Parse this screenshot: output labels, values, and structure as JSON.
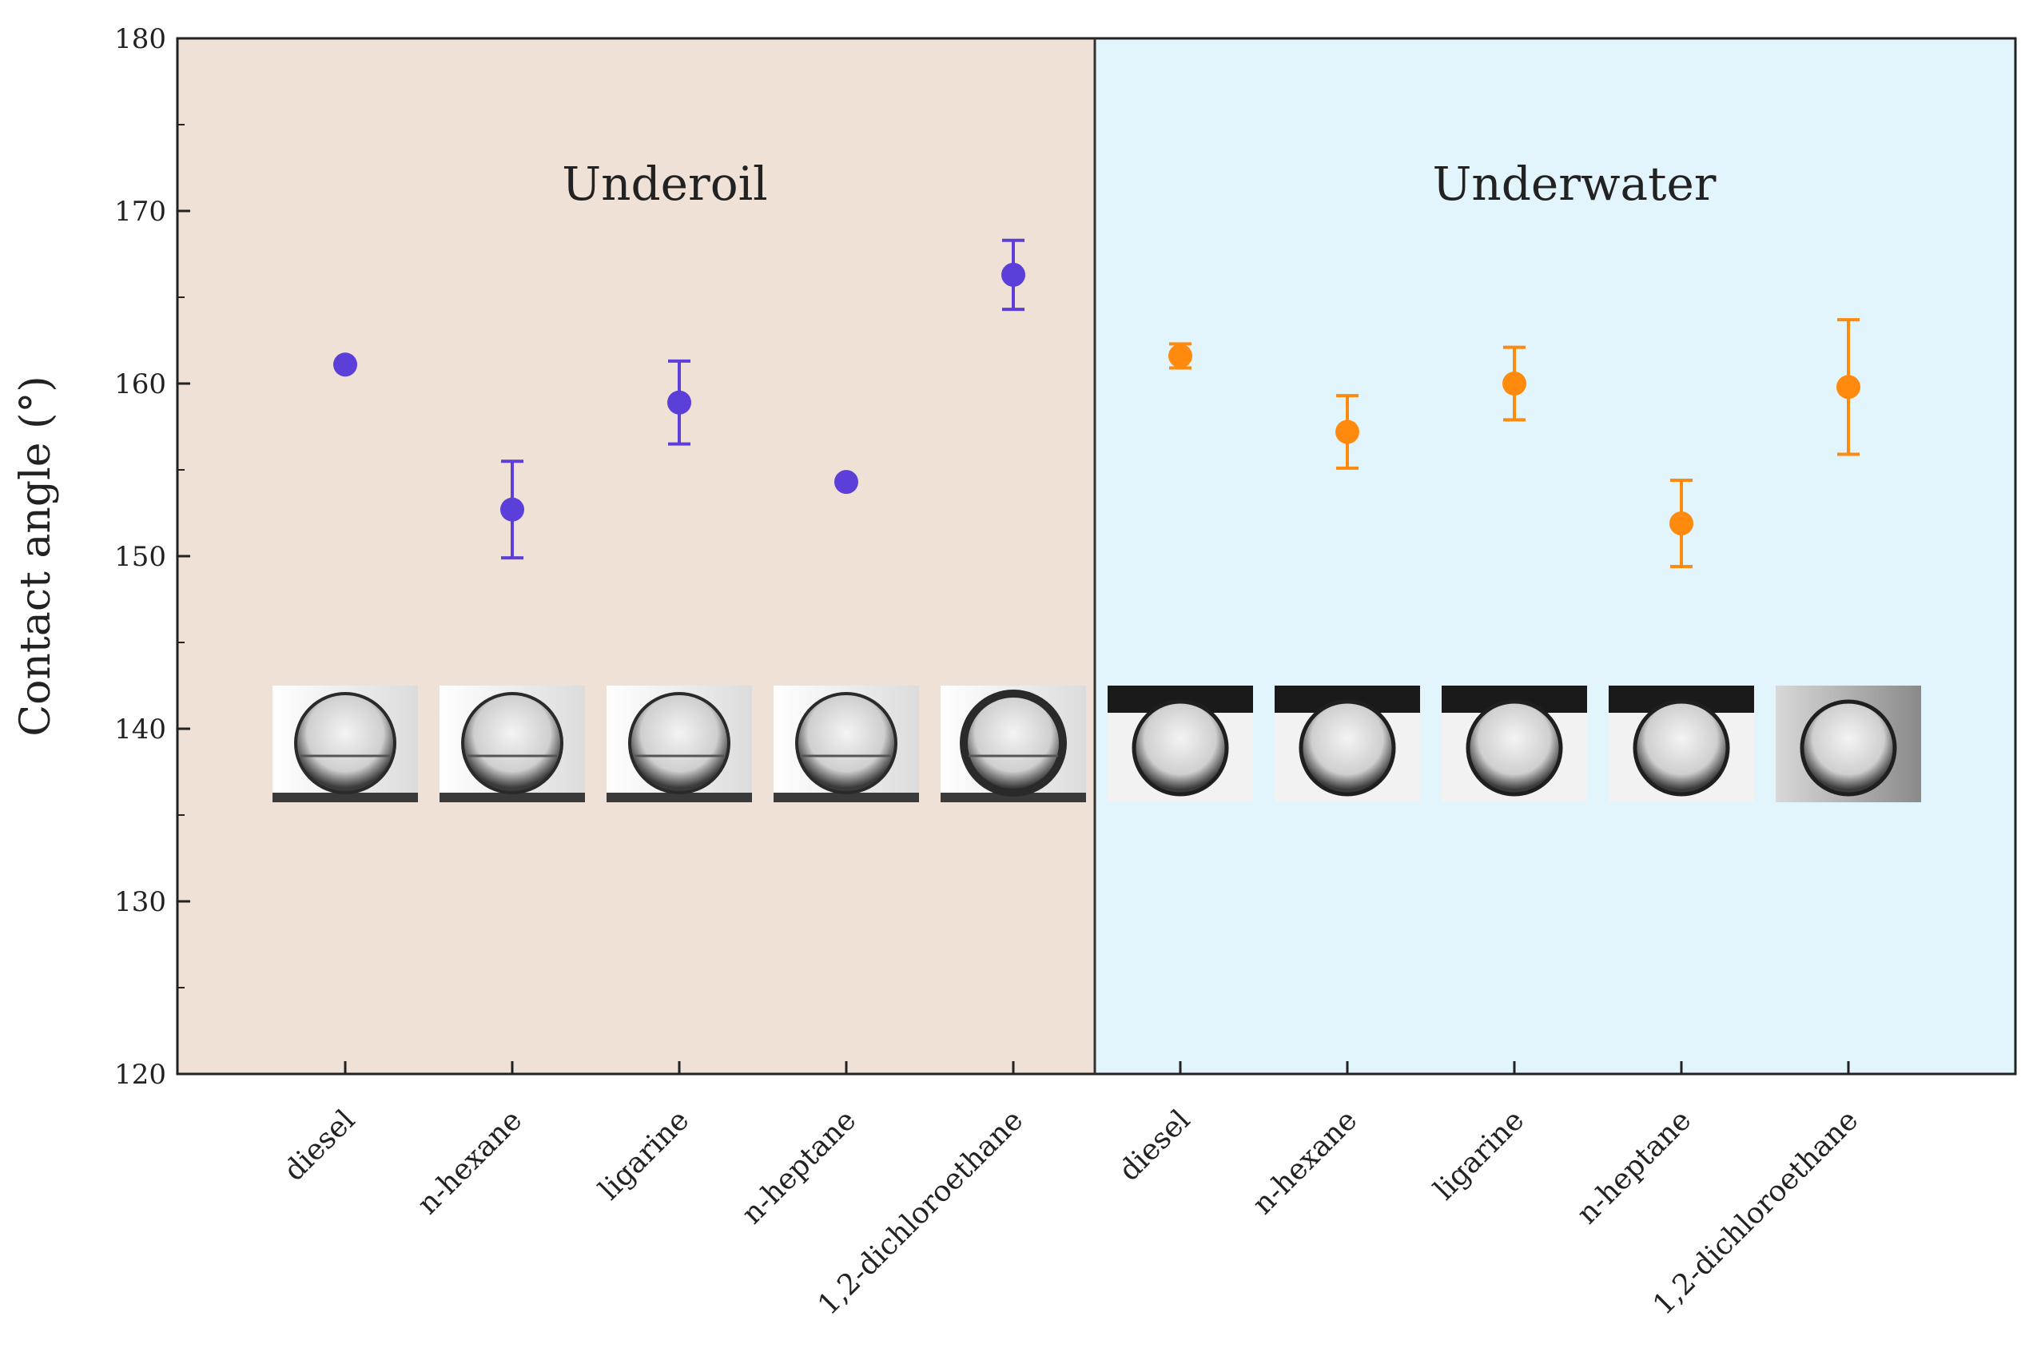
{
  "chart_data": {
    "type": "scatter",
    "ylabel": "Contact angle (°)",
    "ylim": [
      120,
      180
    ],
    "yticks": [
      120,
      130,
      140,
      150,
      160,
      170,
      180
    ],
    "panels": [
      {
        "title": "Underoil",
        "background": "#efe1d6",
        "color": "#5b3fd8"
      },
      {
        "title": "Underwater",
        "background": "#e2f4fc",
        "color": "#ff8a0d"
      }
    ],
    "categories": [
      "diesel",
      "n-hexane",
      "ligarine",
      "n-heptane",
      "1,2-dichloroethane",
      "diesel",
      "n-hexane",
      "ligarine",
      "n-heptane",
      "1,2-dichloroethane"
    ],
    "series": [
      {
        "name": "Underoil",
        "color": "#5b3fd8",
        "values": [
          161.1,
          152.7,
          158.9,
          154.3,
          166.3
        ],
        "errors": [
          0.0,
          2.8,
          2.4,
          0.0,
          2.0
        ]
      },
      {
        "name": "Underwater",
        "color": "#ff8a0d",
        "values": [
          161.6,
          157.2,
          160.0,
          151.9,
          159.8
        ],
        "errors": [
          0.7,
          2.1,
          2.1,
          2.5,
          3.9
        ]
      }
    ],
    "droplet_images": [
      "diesel droplet",
      "n-hexane droplet",
      "ligarine droplet",
      "n-heptane droplet",
      "1,2-dichloroethane droplet",
      "diesel droplet",
      "n-hexane droplet",
      "ligarine droplet",
      "n-heptane droplet",
      "1,2-dichloroethane droplet"
    ]
  }
}
